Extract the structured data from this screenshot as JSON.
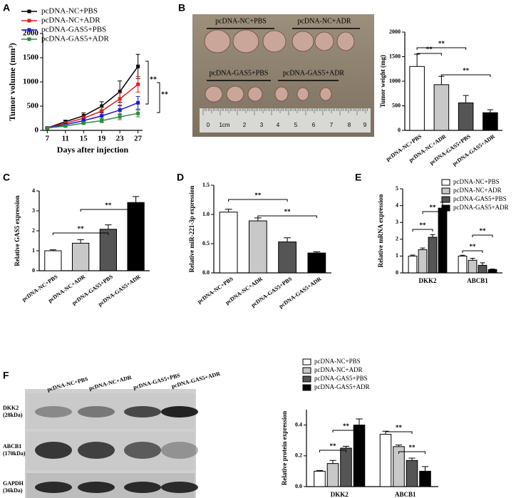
{
  "panels": [
    "A",
    "B",
    "C",
    "D",
    "E",
    "F"
  ],
  "photo": {
    "groups": [
      "pcDNA-NC+PBS",
      "pcDNA-NC+ADR",
      "pcDNA-GAS5+PBS",
      "pcDNA-GAS5+ADR"
    ],
    "ruler": [
      "0",
      "1cm",
      "2",
      "3",
      "4",
      "5",
      "6",
      "7",
      "8",
      "9"
    ]
  },
  "blot": {
    "lanes": [
      "pcDNA-NC+PBS",
      "pcDNA-NC+ADR",
      "pcDNA-GAS5+PBS",
      "pcDNA-GAS5+ADR"
    ],
    "rows": [
      [
        "DKK2",
        "(28kDa)"
      ],
      [
        "ABCB1",
        "(170kDa)"
      ],
      [
        "GAPDH",
        "(36kDa)"
      ]
    ]
  },
  "chart_data": [
    {
      "type": "line",
      "x_label": "Days after injection",
      "y_label": "Tumor volume (mm³)",
      "x": [
        7,
        11,
        15,
        19,
        23,
        27
      ],
      "xlim": [
        6,
        28
      ],
      "xticks": [
        7,
        11,
        15,
        19,
        23,
        27
      ],
      "ylim": [
        0,
        2000
      ],
      "yticks": [
        0,
        500,
        1000,
        1500,
        2000
      ],
      "legend": "upper left",
      "series": [
        {
          "name": "pcDNA-NC+PBS",
          "color": "#000000",
          "values": [
            50,
            180,
            300,
            500,
            800,
            1320
          ],
          "errors": [
            10,
            30,
            60,
            90,
            220,
            250
          ]
        },
        {
          "name": "pcDNA-NC+ADR",
          "color": "#e0201b",
          "values": [
            50,
            150,
            250,
            400,
            650,
            950
          ],
          "errors": [
            10,
            25,
            50,
            80,
            130,
            160
          ]
        },
        {
          "name": "pcDNA-GAS5+PBS",
          "color": "#1a1acc",
          "values": [
            50,
            120,
            200,
            300,
            420,
            570
          ],
          "errors": [
            10,
            20,
            40,
            60,
            90,
            130
          ]
        },
        {
          "name": "pcDNA-GAS5+ADR",
          "color": "#2e8b3a",
          "values": [
            50,
            90,
            150,
            200,
            280,
            350
          ],
          "errors": [
            8,
            15,
            25,
            40,
            60,
            70
          ]
        }
      ],
      "annotations": [
        "**",
        "**"
      ]
    },
    {
      "type": "bar",
      "y_label": "Tumor weight (mg)",
      "categories": [
        "pcDNA-NC+PBS",
        "pcDNA-NC+ADR",
        "pcDNA-GAS5+PBS",
        "pcDNA-GAS5+ADR"
      ],
      "values": [
        1300,
        930,
        560,
        360
      ],
      "errors": [
        250,
        170,
        150,
        60
      ],
      "colors": [
        "#ffffff",
        "#c8c8c8",
        "#555555",
        "#000000"
      ],
      "ylim": [
        0,
        2000
      ],
      "yticks": [
        0,
        500,
        1000,
        1500,
        2000
      ],
      "annotations": [
        "**",
        "**",
        "**"
      ]
    },
    {
      "type": "bar",
      "y_label": "Relative GAS5 expression",
      "categories": [
        "pcDNA-NC+PBS",
        "pcDNA-NC+ADR",
        "pcDNA-GAS5+PBS",
        "pcDNA-GAS5+ADR"
      ],
      "values": [
        1.0,
        1.38,
        2.08,
        3.42
      ],
      "errors": [
        0.05,
        0.18,
        0.22,
        0.3
      ],
      "colors": [
        "#ffffff",
        "#c8c8c8",
        "#555555",
        "#000000"
      ],
      "ylim": [
        0,
        4
      ],
      "yticks": [
        0,
        1,
        2,
        3,
        4
      ],
      "annotations": [
        "**",
        "**"
      ]
    },
    {
      "type": "bar",
      "y_label": "Relative miR-221-3p expression",
      "categories": [
        "pcDNA-NC+PBS",
        "pcDNA-NC+ADR",
        "pcDNA-GAS5+PBS",
        "pcDNA-GAS5+ADR"
      ],
      "values": [
        1.04,
        0.89,
        0.53,
        0.34
      ],
      "errors": [
        0.05,
        0.05,
        0.07,
        0.02
      ],
      "colors": [
        "#ffffff",
        "#c8c8c8",
        "#555555",
        "#000000"
      ],
      "ylim": [
        0,
        1.5
      ],
      "yticks": [
        {
          "value": 0,
          "label": "0.0"
        },
        0.5,
        {
          "value": 1,
          "label": "1.0"
        },
        1.5
      ],
      "annotations": [
        "**",
        "**"
      ]
    },
    {
      "type": "bar",
      "y_label": "Relative mRNA expression",
      "categories": [
        "DKK2",
        "ABCB1"
      ],
      "ylim": [
        0,
        5
      ],
      "yticks": [
        0,
        1,
        2,
        3,
        4,
        5
      ],
      "legend": "upper right",
      "series": [
        {
          "name": "pcDNA-NC+PBS",
          "color": "#ffffff",
          "values": [
            1.0,
            1.0
          ],
          "errors": [
            0.06,
            0.05
          ]
        },
        {
          "name": "pcDNA-NC+ADR",
          "color": "#c8c8c8",
          "values": [
            1.38,
            0.75
          ],
          "errors": [
            0.1,
            0.12
          ]
        },
        {
          "name": "pcDNA-GAS5+PBS",
          "color": "#555555",
          "values": [
            2.12,
            0.45
          ],
          "errors": [
            0.15,
            0.15
          ]
        },
        {
          "name": "pcDNA-GAS5+ADR",
          "color": "#000000",
          "values": [
            3.85,
            0.2
          ],
          "errors": [
            0.35,
            0.03
          ]
        }
      ],
      "annotations": [
        "**",
        "**",
        "**",
        "**"
      ]
    },
    {
      "type": "bar",
      "y_label": "Relative protein expression",
      "categories": [
        "DKK2",
        "ABCB1"
      ],
      "ylim": [
        0,
        0.5
      ],
      "yticks": [
        {
          "value": 0,
          "label": "0.0"
        },
        0.2,
        0.4
      ],
      "legend": "upper left",
      "series": [
        {
          "name": "pcDNA-NC+PBS",
          "color": "#ffffff",
          "values": [
            0.1,
            0.34
          ],
          "errors": [
            0.004,
            0.02
          ]
        },
        {
          "name": "pcDNA-NC+ADR",
          "color": "#c8c8c8",
          "values": [
            0.15,
            0.26
          ],
          "errors": [
            0.02,
            0.01
          ]
        },
        {
          "name": "pcDNA-GAS5+PBS",
          "color": "#555555",
          "values": [
            0.25,
            0.17
          ],
          "errors": [
            0.012,
            0.015
          ]
        },
        {
          "name": "pcDNA-GAS5+ADR",
          "color": "#000000",
          "values": [
            0.4,
            0.1
          ],
          "errors": [
            0.04,
            0.03
          ]
        }
      ],
      "annotations": [
        "**",
        "**",
        "**",
        "**"
      ]
    }
  ]
}
